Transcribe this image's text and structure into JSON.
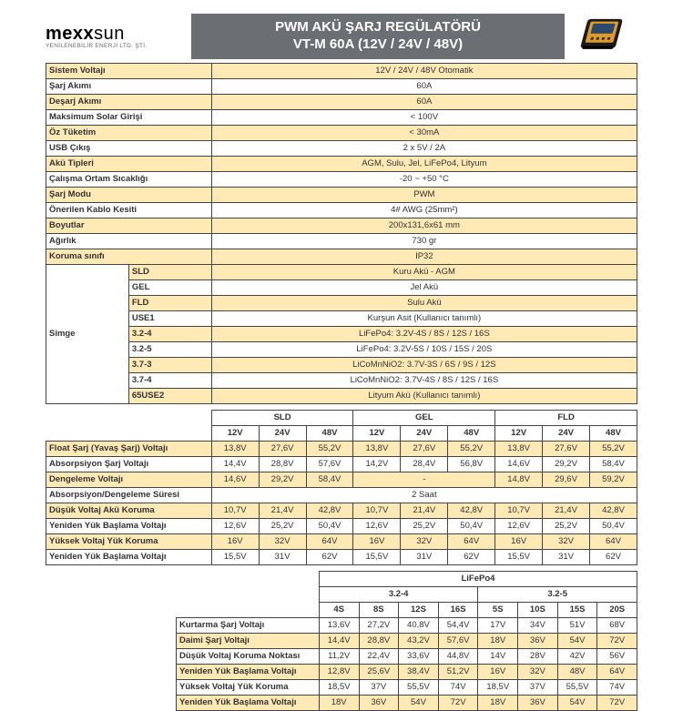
{
  "logo": {
    "brand1": "mexx",
    "brand2": "sun",
    "sub": "YENİLENEBİLİR ENERJİ LTD. ŞTİ."
  },
  "title1": "PWM AKÜ ŞARJ REGÜLATÖRÜ",
  "title2": "VT-M 60A (12V / 24V / 48V)",
  "device_colors": {
    "body": "#1a1a1a",
    "panel": "#e09a2a",
    "screen": "#2b4a6b"
  },
  "specs": [
    {
      "label": "Sistem Voltajı",
      "val": "12V / 24V / 48V Otomatik"
    },
    {
      "label": "Şarj Akımı",
      "val": "60A"
    },
    {
      "label": "Deşarj Akımı",
      "val": "60A"
    },
    {
      "label": "Maksimum Solar Girişi",
      "val": "< 100V"
    },
    {
      "label": "Öz Tüketim",
      "val": "< 30mA"
    },
    {
      "label": "USB Çıkış",
      "val": "2 x 5V / 2A"
    },
    {
      "label": "Akü Tipleri",
      "val": "AGM, Sulu, Jel, LiFePo4, Lityum"
    },
    {
      "label": "Çalışma Ortam Sıcaklığı",
      "val": "-20 ~ +50 °C"
    },
    {
      "label": "Şarj Modu",
      "val": "PWM"
    },
    {
      "label": "Önerilen Kablo Kesiti",
      "val": "4# AWG (25mm²)"
    },
    {
      "label": "Boyutlar",
      "val": "200x131,6x61 mm"
    },
    {
      "label": "Ağırlık",
      "val": "730 gr"
    },
    {
      "label": "Koruma sınıfı",
      "val": "IP32"
    }
  ],
  "simge_title": "Simge",
  "simge": [
    {
      "k": "SLD",
      "v": "Kuru Akü - AGM"
    },
    {
      "k": "GEL",
      "v": "Jel Akü"
    },
    {
      "k": "FLD",
      "v": "Sulu Akü"
    },
    {
      "k": "USE1",
      "v": "Kurşun Asit (Kullanıcı tanımlı)"
    },
    {
      "k": "3.2-4",
      "v": "LiFePo4: 3.2V-4S / 8S / 12S / 16S"
    },
    {
      "k": "3.2-5",
      "v": "LiFePo4: 3.2V-5S / 10S / 15S / 20S"
    },
    {
      "k": "3.7-3",
      "v": "LiCoMnNiO2: 3.7V-3S / 6S / 9S / 12S"
    },
    {
      "k": "3.7-4",
      "v": "LiCoMnNiO2: 3.7V-4S / 8S / 12S / 16S"
    },
    {
      "k": "65USE2",
      "v": "Lityum Akü (Kullanıcı tanımlı)"
    }
  ],
  "volt_headers": {
    "groups": [
      "SLD",
      "GEL",
      "FLD"
    ],
    "sub": [
      "12V",
      "24V",
      "48V",
      "12V",
      "24V",
      "48V",
      "12V",
      "24V",
      "48V"
    ]
  },
  "volt_rows": [
    {
      "label": "Float Şarj (Yavaş Şarj) Voltajı",
      "cells": [
        "13,8V",
        "27,6V",
        "55,2V",
        "13,8V",
        "27,6V",
        "55,2V",
        "13,8V",
        "27,6V",
        "55,2V"
      ]
    },
    {
      "label": "Absorpsiyon Şarj Voltajı",
      "cells": [
        "14,4V",
        "28,8V",
        "57,6V",
        "14,2V",
        "28,4V",
        "56,8V",
        "14,6V",
        "29,2V",
        "58,4V"
      ]
    },
    {
      "label": "Dengeleme Voltajı",
      "cells": [
        "14,6V",
        "29,2V",
        "58,4V",
        "-",
        "-",
        "-",
        "14,8V",
        "29,6V",
        "59,2V"
      ],
      "merge3": [
        3
      ]
    },
    {
      "label": "Absorpsiyon/Dengeleme Süresi",
      "cells": [
        "2 Saat"
      ],
      "full": true
    },
    {
      "label": "Düşük Voltaj Akü Koruma",
      "cells": [
        "10,7V",
        "21,4V",
        "42,8V",
        "10,7V",
        "21,4V",
        "42,8V",
        "10,7V",
        "21,4V",
        "42,8V"
      ]
    },
    {
      "label": "Yeniden Yük Başlama Voltajı",
      "cells": [
        "12,6V",
        "25,2V",
        "50,4V",
        "12,6V",
        "25,2V",
        "50,4V",
        "12,6V",
        "25,2V",
        "50,4V"
      ]
    },
    {
      "label": "Yüksek Voltaj Yük Koruma",
      "cells": [
        "16V",
        "32V",
        "64V",
        "16V",
        "32V",
        "64V",
        "16V",
        "32V",
        "64V"
      ]
    },
    {
      "label": "Yeniden Yük Başlama Voltajı",
      "cells": [
        "15,5V",
        "31V",
        "62V",
        "15,5V",
        "31V",
        "62V",
        "15,5V",
        "31V",
        "62V"
      ]
    }
  ],
  "life_title": "LiFePo4",
  "life_groups": [
    "3.2-4",
    "3.2-5"
  ],
  "life_sub": [
    "4S",
    "8S",
    "12S",
    "16S",
    "5S",
    "10S",
    "15S",
    "20S"
  ],
  "life_rows": [
    {
      "label": "Kurtarma Şarj Voltajı",
      "cells": [
        "13,6V",
        "27,2V",
        "40,8V",
        "54,4V",
        "17V",
        "34V",
        "51V",
        "68V"
      ]
    },
    {
      "label": "Daimi Şarj Voltajı",
      "cells": [
        "14,4V",
        "28,8V",
        "43,2V",
        "57,6V",
        "18V",
        "36V",
        "54V",
        "72V"
      ]
    },
    {
      "label": "Düşük Voltaj Koruma Noktası",
      "cells": [
        "11,2V",
        "22,4V",
        "33,6V",
        "44,8V",
        "14V",
        "28V",
        "42V",
        "56V"
      ]
    },
    {
      "label": "Yeniden Yük Başlama Voltajı",
      "cells": [
        "12,8V",
        "25,6V",
        "38,4V",
        "51,2V",
        "16V",
        "32V",
        "48V",
        "64V"
      ]
    },
    {
      "label": "Yüksek Voltaj Yük Koruma",
      "cells": [
        "18,5V",
        "37V",
        "55,5V",
        "74V",
        "18,5V",
        "37V",
        "55,5V",
        "74V"
      ]
    },
    {
      "label": "Yeniden Yük Başlama Voltajı",
      "cells": [
        "18V",
        "36V",
        "54V",
        "72V",
        "18V",
        "36V",
        "54V",
        "72V"
      ]
    }
  ]
}
